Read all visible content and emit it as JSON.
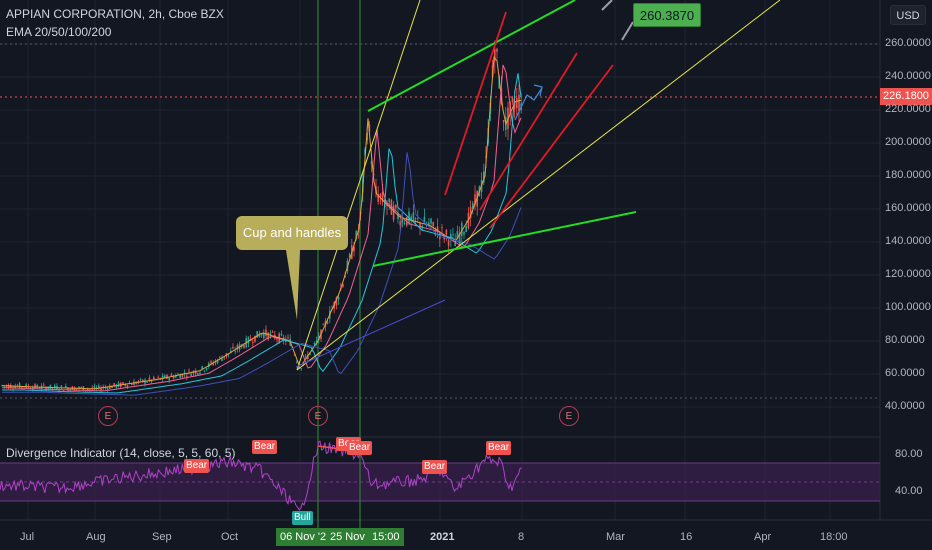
{
  "header": {
    "title": "APPIAN CORPORATION, 2h, Cboe BZX",
    "ema_label": "EMA 20/50/100/200",
    "currency_button": "USD"
  },
  "oscillator": {
    "title": "Divergence Indicator (14, close, 5, 5, 60, 5)",
    "y_ticks": [
      "80.00",
      "40.00"
    ],
    "signals": [
      {
        "label": "Bear",
        "kind": "bear"
      },
      {
        "label": "Bear",
        "kind": "bear"
      },
      {
        "label": "Bear",
        "kind": "bear"
      },
      {
        "label": "Bear",
        "kind": "bear"
      },
      {
        "label": "Bear",
        "kind": "bear"
      },
      {
        "label": "Bear",
        "kind": "bear"
      },
      {
        "label": "Bull",
        "kind": "bull"
      }
    ]
  },
  "annotations": {
    "cup_callout": "Cup and handles",
    "price_callout": "260.3870",
    "earnings_marker": "E"
  },
  "x_axis": {
    "labels": [
      "Jul",
      "Aug",
      "Sep",
      "Oct",
      "Nov",
      "2021",
      "8",
      "Mar",
      "16",
      "Apr",
      "18:00"
    ],
    "highlight_dates": [
      "06 Nov '20",
      "25 Nov '20",
      "15:00"
    ]
  },
  "colors": {
    "background": "#131722",
    "candle_up": "#26a69a",
    "candle_down": "#ef5350",
    "trend_green": "#22dd22",
    "trend_yellow": "#e5e545",
    "trend_red": "#e01b24",
    "osc_line": "#b044c8",
    "osc_band": "#3a1f4f"
  },
  "chart_data": {
    "type": "line",
    "title": "APPIAN CORPORATION, 2h, Cboe BZX",
    "xlabel": "",
    "ylabel": "",
    "y_ticks": [
      "260.0000",
      "240.0000",
      "220.0000",
      "200.0000",
      "180.0000",
      "160.0000",
      "140.0000",
      "120.0000",
      "100.0000",
      "80.0000",
      "60.0000",
      "40.0000"
    ],
    "current_price": "226.1800",
    "ylim": [
      30,
      290
    ],
    "grid": true,
    "series": [
      {
        "name": "",
        "x": [
          "Jul",
          "Aug",
          "Sep",
          "Oct",
          "Nov",
          "2021",
          "8"
        ],
        "values": [
          53,
          51,
          58,
          72,
          68,
          140,
          226
        ]
      }
    ]
  }
}
